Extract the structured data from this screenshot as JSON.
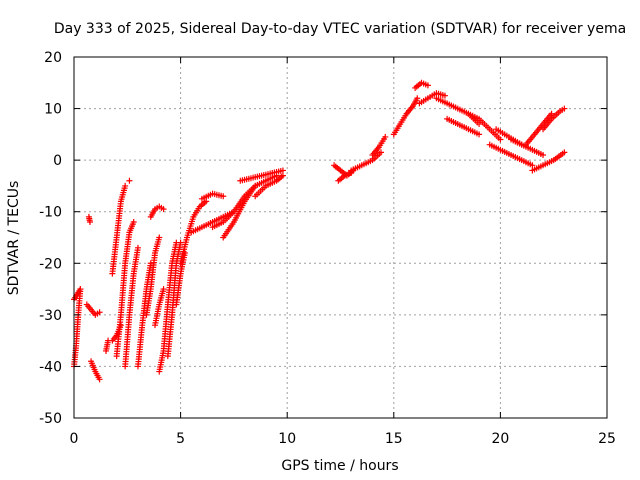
{
  "chart_data": {
    "type": "scatter",
    "title": "Day 333 of 2025, Sidereal Day-to-day VTEC variation (SDTVAR) for receiver yema",
    "xlabel": "GPS time / hours",
    "ylabel": "SDTVAR / TECUs",
    "xlim": [
      0,
      25
    ],
    "ylim": [
      -50,
      20
    ],
    "xticks": [
      0,
      5,
      10,
      15,
      20,
      25
    ],
    "yticks": [
      -50,
      -40,
      -30,
      -20,
      -10,
      0,
      10,
      20
    ],
    "grid": true,
    "marker": "+",
    "color": "#ff0000",
    "segments": [
      {
        "x": [
          0.0,
          0.1,
          0.2,
          0.3
        ],
        "y": [
          -40,
          -36,
          -30,
          -25
        ]
      },
      {
        "x": [
          0.0,
          0.15,
          0.3
        ],
        "y": [
          -27,
          -26,
          -25
        ]
      },
      {
        "x": [
          0.6,
          0.8,
          1.0,
          1.2
        ],
        "y": [
          -28,
          -29,
          -30,
          -29.5
        ]
      },
      {
        "x": [
          0.7,
          0.75
        ],
        "y": [
          -11,
          -12
        ]
      },
      {
        "x": [
          0.8,
          1.0,
          1.2
        ],
        "y": [
          -39,
          -41,
          -42.5
        ]
      },
      {
        "x": [
          1.5,
          1.6
        ],
        "y": [
          -37,
          -35
        ]
      },
      {
        "x": [
          1.8,
          2.0,
          2.2,
          2.4
        ],
        "y": [
          -22,
          -15,
          -8,
          -5
        ]
      },
      {
        "x": [
          1.8,
          2.0,
          2.2
        ],
        "y": [
          -35,
          -34,
          -32
        ]
      },
      {
        "x": [
          2.0,
          2.2,
          2.4,
          2.6,
          2.8
        ],
        "y": [
          -38,
          -30,
          -20,
          -14,
          -12
        ]
      },
      {
        "x": [
          2.4,
          2.6,
          2.8,
          3.0
        ],
        "y": [
          -40,
          -30,
          -22,
          -17
        ]
      },
      {
        "x": [
          2.6
        ],
        "y": [
          -4
        ]
      },
      {
        "x": [
          3.0,
          3.2,
          3.4,
          3.6
        ],
        "y": [
          -40,
          -32,
          -25,
          -20
        ]
      },
      {
        "x": [
          3.4,
          3.6,
          3.8,
          4.0
        ],
        "y": [
          -30,
          -25,
          -18,
          -15
        ]
      },
      {
        "x": [
          3.6,
          3.8,
          4.0,
          4.2
        ],
        "y": [
          -11,
          -9.5,
          -9,
          -9.5
        ]
      },
      {
        "x": [
          3.8,
          4.0,
          4.2
        ],
        "y": [
          -32,
          -28,
          -25
        ]
      },
      {
        "x": [
          4.0,
          4.2,
          4.4,
          4.6,
          4.8
        ],
        "y": [
          -41,
          -37,
          -28,
          -20,
          -16
        ]
      },
      {
        "x": [
          4.4,
          4.6,
          4.8,
          5.0
        ],
        "y": [
          -38,
          -30,
          -20,
          -16
        ]
      },
      {
        "x": [
          4.8,
          5.0,
          5.2
        ],
        "y": [
          -28,
          -22,
          -18
        ]
      },
      {
        "x": [
          5.0,
          5.3,
          5.6,
          5.9,
          6.2
        ],
        "y": [
          -20,
          -15,
          -11,
          -9,
          -8
        ]
      },
      {
        "x": [
          5.5,
          6.0,
          6.5,
          7.0,
          7.5
        ],
        "y": [
          -14,
          -13,
          -12,
          -11,
          -10
        ]
      },
      {
        "x": [
          6.0,
          6.5,
          7.0
        ],
        "y": [
          -7.5,
          -6.5,
          -7
        ]
      },
      {
        "x": [
          6.5,
          7.0,
          7.5,
          8.0,
          8.5
        ],
        "y": [
          -13,
          -12,
          -10,
          -7,
          -5
        ]
      },
      {
        "x": [
          7.0,
          7.5,
          8.0,
          8.5,
          9.0,
          9.5
        ],
        "y": [
          -15,
          -12,
          -8,
          -5,
          -4,
          -3
        ]
      },
      {
        "x": [
          7.8,
          8.3,
          8.8,
          9.3,
          9.8
        ],
        "y": [
          -4,
          -3.5,
          -3,
          -2.5,
          -2
        ]
      },
      {
        "x": [
          8.5,
          9.0,
          9.5,
          9.8
        ],
        "y": [
          -7,
          -5,
          -4,
          -3
        ]
      },
      {
        "x": [
          12.2,
          12.5,
          12.8,
          13.1
        ],
        "y": [
          -1,
          -2,
          -3,
          -2
        ]
      },
      {
        "x": [
          12.4,
          12.7,
          13.0
        ],
        "y": [
          -4,
          -3,
          -2.5
        ]
      },
      {
        "x": [
          13.0,
          13.5,
          14.0,
          14.4
        ],
        "y": [
          -2,
          -1,
          0,
          1.5
        ]
      },
      {
        "x": [
          14.0,
          14.3,
          14.6
        ],
        "y": [
          1,
          2.5,
          4.5
        ]
      },
      {
        "x": [
          15.0,
          15.3,
          15.6,
          15.9,
          16.1
        ],
        "y": [
          5,
          7,
          9,
          10.5,
          12
        ]
      },
      {
        "x": [
          16.0,
          16.3,
          16.6
        ],
        "y": [
          14,
          15,
          14.5
        ]
      },
      {
        "x": [
          16.2,
          16.6,
          17.0,
          17.4
        ],
        "y": [
          11,
          12,
          13,
          12.5
        ]
      },
      {
        "x": [
          17.0,
          17.5,
          18.0,
          18.5,
          19.0
        ],
        "y": [
          12,
          11,
          10,
          9,
          7
        ]
      },
      {
        "x": [
          17.5,
          18.0,
          18.5,
          19.0
        ],
        "y": [
          8,
          7,
          6,
          5
        ]
      },
      {
        "x": [
          18.5,
          19.0,
          19.5,
          20.0
        ],
        "y": [
          9,
          8,
          6,
          4
        ]
      },
      {
        "x": [
          19.5,
          20.0,
          20.5,
          21.0,
          21.5
        ],
        "y": [
          3,
          2,
          1,
          0,
          -1
        ]
      },
      {
        "x": [
          19.8,
          20.2,
          20.6,
          21.0
        ],
        "y": [
          6,
          5,
          4,
          3
        ]
      },
      {
        "x": [
          20.5,
          21.0,
          21.5,
          22.0
        ],
        "y": [
          4,
          3,
          2,
          1
        ]
      },
      {
        "x": [
          21.2,
          21.6,
          22.0,
          22.4
        ],
        "y": [
          3,
          5,
          7,
          9
        ]
      },
      {
        "x": [
          21.5,
          22.0,
          22.5,
          23.0
        ],
        "y": [
          -2,
          -1,
          0,
          1.5
        ]
      },
      {
        "x": [
          22.0,
          22.4,
          22.8,
          23.0
        ],
        "y": [
          6,
          8,
          9.5,
          10
        ]
      }
    ]
  }
}
